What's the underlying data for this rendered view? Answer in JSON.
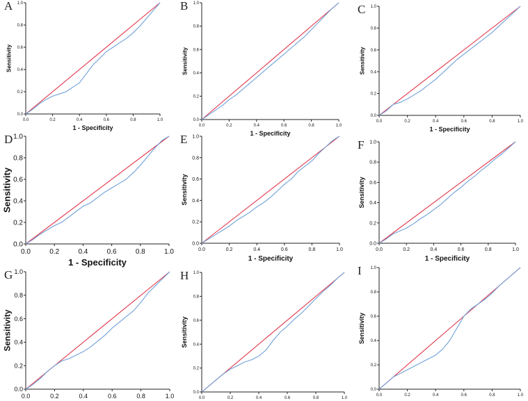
{
  "colors": {
    "roc_curve": "#6fa0d8",
    "reference_line": "#e0344a",
    "axis": "#222222"
  },
  "chart_data": [
    {
      "panel": "A",
      "type": "line",
      "xlabel": "1 - Specificity",
      "ylabel": "Sensitivity",
      "xlim": [
        0,
        1
      ],
      "ylim": [
        0,
        1
      ],
      "xticks": [
        "0.0",
        "0.2",
        "0.4",
        "0.6",
        "0.8",
        "1.0"
      ],
      "yticks": [
        "0.0",
        "0.2",
        "0.4",
        "0.6",
        "0.8",
        "1.0"
      ],
      "series": [
        {
          "role": "reference",
          "x": [
            0,
            1
          ],
          "y": [
            0,
            1
          ]
        },
        {
          "role": "roc",
          "x": [
            0,
            0.05,
            0.1,
            0.15,
            0.2,
            0.25,
            0.3,
            0.35,
            0.4,
            0.45,
            0.5,
            0.55,
            0.6,
            0.65,
            0.7,
            0.75,
            0.8,
            0.85,
            0.9,
            0.95,
            1
          ],
          "y": [
            0,
            0.04,
            0.09,
            0.13,
            0.16,
            0.18,
            0.2,
            0.24,
            0.28,
            0.36,
            0.44,
            0.5,
            0.56,
            0.6,
            0.64,
            0.68,
            0.73,
            0.79,
            0.86,
            0.93,
            1
          ]
        }
      ]
    },
    {
      "panel": "B",
      "type": "line",
      "xlabel": "1 - Specificity",
      "ylabel": "Sensitivity",
      "xlim": [
        0,
        1
      ],
      "ylim": [
        0,
        1
      ],
      "xticks": [
        "0.0",
        "0.2",
        "0.4",
        "0.6",
        "0.8",
        "1.0"
      ],
      "yticks": [
        "0.0",
        "0.2",
        "0.4",
        "0.6",
        "0.8",
        "1.0"
      ],
      "series": [
        {
          "role": "reference",
          "x": [
            0,
            1
          ],
          "y": [
            0,
            1
          ]
        },
        {
          "role": "roc",
          "x": [
            0,
            0.05,
            0.1,
            0.15,
            0.2,
            0.25,
            0.3,
            0.35,
            0.4,
            0.45,
            0.5,
            0.55,
            0.6,
            0.65,
            0.7,
            0.75,
            0.8,
            0.85,
            0.9,
            0.95,
            1
          ],
          "y": [
            0,
            0.04,
            0.08,
            0.12,
            0.17,
            0.21,
            0.26,
            0.31,
            0.36,
            0.41,
            0.46,
            0.51,
            0.56,
            0.61,
            0.66,
            0.71,
            0.77,
            0.83,
            0.89,
            0.95,
            1
          ]
        }
      ]
    },
    {
      "panel": "C",
      "type": "line",
      "xlabel": "1 - Specificity",
      "ylabel": "Sensitivity",
      "xlim": [
        0,
        1
      ],
      "ylim": [
        0,
        1
      ],
      "xticks": [
        "0.0",
        "0.2",
        "0.4",
        "0.6",
        "0.8",
        "1.0"
      ],
      "yticks": [
        "0.0",
        "0.2",
        "0.4",
        "0.6",
        "0.8",
        "1.0"
      ],
      "series": [
        {
          "role": "reference",
          "x": [
            0,
            1
          ],
          "y": [
            0,
            1
          ]
        },
        {
          "role": "roc",
          "x": [
            0,
            0.05,
            0.1,
            0.15,
            0.2,
            0.25,
            0.3,
            0.35,
            0.4,
            0.45,
            0.5,
            0.55,
            0.6,
            0.65,
            0.7,
            0.75,
            0.8,
            0.85,
            0.9,
            0.95,
            1
          ],
          "y": [
            0,
            0.04,
            0.1,
            0.12,
            0.15,
            0.19,
            0.23,
            0.28,
            0.33,
            0.39,
            0.45,
            0.51,
            0.56,
            0.61,
            0.66,
            0.71,
            0.76,
            0.82,
            0.88,
            0.94,
            1
          ]
        }
      ]
    },
    {
      "panel": "D",
      "type": "line",
      "xlabel": "1 - Specificity",
      "ylabel": "Sensitivity",
      "xlim": [
        0,
        1
      ],
      "ylim": [
        0,
        1
      ],
      "xticks": [
        "0.0",
        "0.2",
        "0.4",
        "0.6",
        "0.8",
        "1.0"
      ],
      "yticks": [
        "0.0",
        "0.2",
        "0.4",
        "0.6",
        "0.8",
        "1.0"
      ],
      "series": [
        {
          "role": "reference",
          "x": [
            0,
            1
          ],
          "y": [
            0,
            1
          ]
        },
        {
          "role": "roc",
          "x": [
            0,
            0.05,
            0.1,
            0.15,
            0.2,
            0.25,
            0.3,
            0.35,
            0.4,
            0.45,
            0.5,
            0.55,
            0.6,
            0.65,
            0.7,
            0.75,
            0.8,
            0.85,
            0.9,
            0.95,
            1
          ],
          "y": [
            0,
            0.04,
            0.09,
            0.13,
            0.17,
            0.2,
            0.25,
            0.3,
            0.35,
            0.38,
            0.43,
            0.48,
            0.52,
            0.56,
            0.6,
            0.66,
            0.73,
            0.81,
            0.89,
            0.96,
            1
          ]
        }
      ]
    },
    {
      "panel": "E",
      "type": "line",
      "xlabel": "1 - Specificity",
      "ylabel": "Sensitivity",
      "xlim": [
        0,
        1
      ],
      "ylim": [
        0,
        1
      ],
      "xticks": [
        "0.0",
        "0.2",
        "0.4",
        "0.6",
        "0.8",
        "1.0"
      ],
      "yticks": [
        "0.0",
        "0.2",
        "0.4",
        "0.6",
        "0.8",
        "1.0"
      ],
      "series": [
        {
          "role": "reference",
          "x": [
            0,
            1
          ],
          "y": [
            0,
            1
          ]
        },
        {
          "role": "roc",
          "x": [
            0,
            0.05,
            0.1,
            0.15,
            0.2,
            0.25,
            0.3,
            0.35,
            0.4,
            0.45,
            0.5,
            0.55,
            0.6,
            0.65,
            0.7,
            0.75,
            0.8,
            0.85,
            0.9,
            0.95,
            1
          ],
          "y": [
            0,
            0.04,
            0.08,
            0.12,
            0.16,
            0.21,
            0.25,
            0.29,
            0.34,
            0.38,
            0.43,
            0.49,
            0.55,
            0.6,
            0.67,
            0.72,
            0.77,
            0.84,
            0.9,
            0.96,
            1
          ]
        }
      ]
    },
    {
      "panel": "F",
      "type": "line",
      "xlabel": "1 - Specificity",
      "ylabel": "Sensitivity",
      "xlim": [
        0,
        1
      ],
      "ylim": [
        0,
        1
      ],
      "xticks": [
        "0.0",
        "0.2",
        "0.4",
        "0.6",
        "0.8",
        "1.0"
      ],
      "yticks": [
        "0.0",
        "0.2",
        "0.4",
        "0.6",
        "0.8",
        "1.0"
      ],
      "series": [
        {
          "role": "reference",
          "x": [
            0,
            1
          ],
          "y": [
            0,
            1
          ]
        },
        {
          "role": "roc",
          "x": [
            0,
            0.05,
            0.1,
            0.15,
            0.2,
            0.25,
            0.3,
            0.35,
            0.4,
            0.45,
            0.5,
            0.55,
            0.6,
            0.65,
            0.7,
            0.75,
            0.8,
            0.85,
            0.9,
            0.95,
            1
          ],
          "y": [
            0,
            0.04,
            0.09,
            0.12,
            0.15,
            0.19,
            0.24,
            0.28,
            0.33,
            0.38,
            0.44,
            0.5,
            0.55,
            0.61,
            0.66,
            0.72,
            0.77,
            0.83,
            0.88,
            0.94,
            1
          ]
        }
      ]
    },
    {
      "panel": "G",
      "type": "line",
      "xlabel": "",
      "ylabel": "Sensitivity",
      "xlim": [
        0,
        1
      ],
      "ylim": [
        0,
        1
      ],
      "xticks": [
        "0.0",
        "0.2",
        "0.4",
        "0.6",
        "0.8",
        "1.0"
      ],
      "yticks": [
        "0.0",
        "0.2",
        "0.4",
        "0.6",
        "0.8",
        "1.0"
      ],
      "series": [
        {
          "role": "reference",
          "x": [
            0,
            1
          ],
          "y": [
            0,
            1
          ]
        },
        {
          "role": "roc",
          "x": [
            0,
            0.05,
            0.1,
            0.15,
            0.2,
            0.25,
            0.3,
            0.35,
            0.4,
            0.45,
            0.5,
            0.55,
            0.6,
            0.65,
            0.7,
            0.75,
            0.8,
            0.85,
            0.9,
            0.95,
            1
          ],
          "y": [
            0,
            0.04,
            0.09,
            0.15,
            0.2,
            0.24,
            0.26,
            0.29,
            0.32,
            0.36,
            0.41,
            0.46,
            0.52,
            0.57,
            0.62,
            0.67,
            0.74,
            0.82,
            0.88,
            0.94,
            1
          ]
        }
      ]
    },
    {
      "panel": "H",
      "type": "line",
      "xlabel": "",
      "ylabel": "Sensitivity",
      "xlim": [
        0,
        1
      ],
      "ylim": [
        0,
        1
      ],
      "xticks": [
        "0.0",
        "0.2",
        "0.4",
        "0.6",
        "0.8",
        "1.0"
      ],
      "yticks": [
        "0.0",
        "0.2",
        "0.4",
        "0.6",
        "0.8",
        "1.0"
      ],
      "series": [
        {
          "role": "reference",
          "x": [
            0,
            1
          ],
          "y": [
            0,
            1
          ]
        },
        {
          "role": "roc",
          "x": [
            0,
            0.05,
            0.1,
            0.15,
            0.2,
            0.25,
            0.3,
            0.35,
            0.4,
            0.45,
            0.5,
            0.55,
            0.6,
            0.65,
            0.7,
            0.75,
            0.8,
            0.85,
            0.9,
            0.95,
            1
          ],
          "y": [
            0,
            0.05,
            0.1,
            0.15,
            0.19,
            0.22,
            0.25,
            0.27,
            0.3,
            0.35,
            0.43,
            0.5,
            0.55,
            0.61,
            0.66,
            0.72,
            0.78,
            0.84,
            0.89,
            0.95,
            1
          ]
        }
      ]
    },
    {
      "panel": "I",
      "type": "line",
      "xlabel": "",
      "ylabel": "Sensitivity",
      "xlim": [
        0,
        1
      ],
      "ylim": [
        0,
        1
      ],
      "xticks": [
        "0.0",
        "0.2",
        "0.4",
        "0.6",
        "0.8",
        "1.0"
      ],
      "yticks": [
        "0.0",
        "0.2",
        "0.4",
        "0.6",
        "0.8",
        "1.0"
      ],
      "series": [
        {
          "role": "reference",
          "x": [
            0,
            1
          ],
          "y": [
            0,
            1
          ]
        },
        {
          "role": "roc",
          "x": [
            0,
            0.05,
            0.1,
            0.15,
            0.2,
            0.25,
            0.3,
            0.35,
            0.4,
            0.45,
            0.5,
            0.55,
            0.6,
            0.65,
            0.7,
            0.75,
            0.8,
            0.85,
            0.9,
            0.95,
            1
          ],
          "y": [
            0,
            0.05,
            0.1,
            0.13,
            0.16,
            0.19,
            0.22,
            0.25,
            0.28,
            0.33,
            0.4,
            0.5,
            0.6,
            0.66,
            0.7,
            0.74,
            0.79,
            0.85,
            0.9,
            0.95,
            1
          ]
        }
      ]
    }
  ]
}
